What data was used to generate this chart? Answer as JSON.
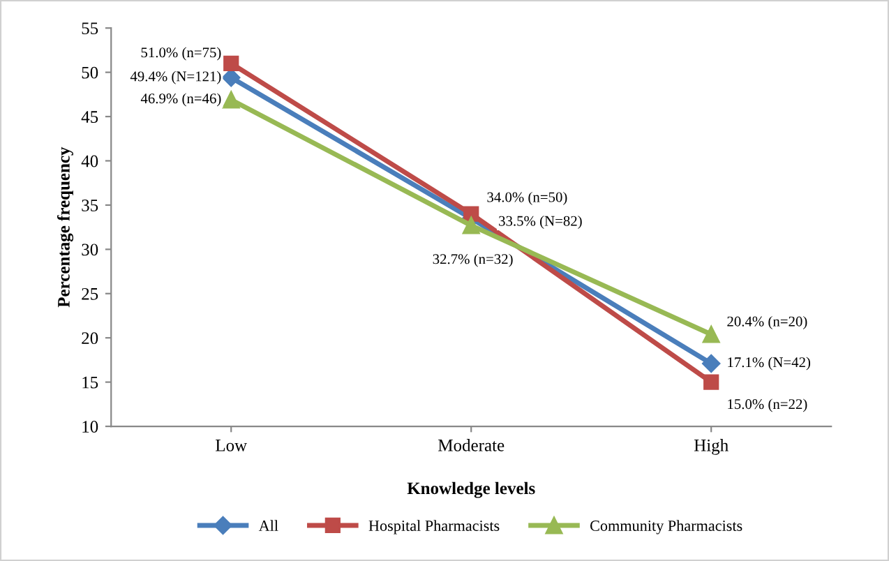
{
  "chart_data": {
    "type": "line",
    "xlabel": "Knowledge levels",
    "ylabel": "Percentage frequency",
    "categories": [
      "Low",
      "Moderate",
      "High"
    ],
    "series": [
      {
        "name": "All",
        "color": "#4a7ebb",
        "marker": "diamond",
        "values": [
          49.4,
          33.5,
          17.1
        ],
        "value_labels": [
          "49.4% (N=121)",
          "33.5% (N=82)",
          "17.1% (N=42)"
        ]
      },
      {
        "name": "Hospital Pharmacists",
        "color": "#be4b48",
        "marker": "square",
        "values": [
          51.0,
          34.0,
          15.0
        ],
        "value_labels": [
          "51.0% (n=75)",
          "34.0% (n=50)",
          "15.0% (n=22)"
        ]
      },
      {
        "name": "Community Pharmacists",
        "color": "#98b954",
        "marker": "triangle",
        "values": [
          46.9,
          32.7,
          20.4
        ],
        "value_labels": [
          "46.9% (n=46)",
          "32.7% (n=32)",
          "20.4% (n=20)"
        ]
      }
    ],
    "ylim": [
      10,
      55
    ],
    "yticks": [
      10,
      15,
      20,
      25,
      30,
      35,
      40,
      45,
      50,
      55
    ],
    "grid": false,
    "legend": "bottom"
  }
}
